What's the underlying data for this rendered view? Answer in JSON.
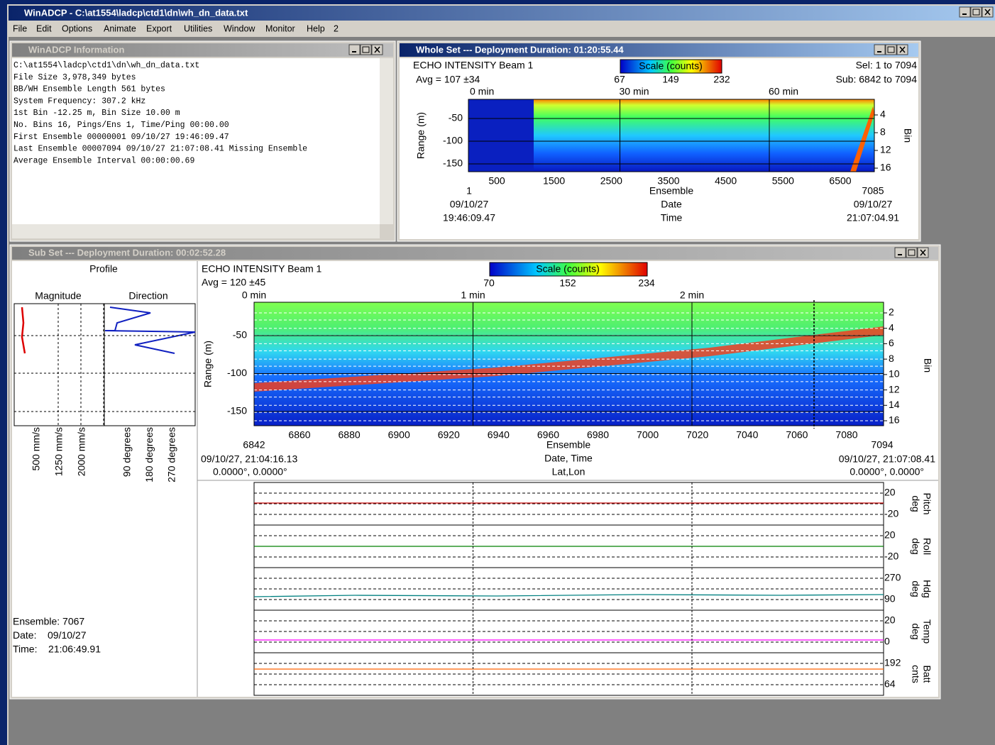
{
  "app": {
    "title": "WinADCP - C:\\at1554\\ladcp\\ctd1\\dn\\wh_dn_data.txt",
    "menu": [
      "File",
      "Edit",
      "Options",
      "Animate",
      "Export",
      "Utilities",
      "Window",
      "Monitor",
      "Help",
      "2"
    ]
  },
  "info_window": {
    "title": "WinADCP Information",
    "lines": [
      "C:\\at1554\\ladcp\\ctd1\\dn\\wh_dn_data.txt",
      "File Size 3,978,349 bytes",
      "BB/WH Ensemble Length 561 bytes",
      "System Frequency: 307.2 kHz",
      "1st Bin -12.25 m, Bin Size 10.00 m",
      "No. Bins 16, Pings/Ens 1, Time/Ping 00:00.00",
      "First Ensemble 00000001 09/10/27 19:46:09.47",
      "Last  Ensemble 00007094 09/10/27 21:07:08.41  Missing Ensemble",
      "Average Ensemble Interval 00:00:00.69"
    ]
  },
  "whole_set": {
    "title": "Whole Set --- Deployment Duration: 01:20:55.44",
    "chart_title": "ECHO INTENSITY Beam 1",
    "avg": "Avg = 107 ±34",
    "scale_label": "Scale (counts)",
    "scale_ticks": [
      "67",
      "149",
      "232"
    ],
    "sel": "Sel: 1 to 7094",
    "sub": "Sub: 6842 to 7094",
    "time_ticks": [
      "0 min",
      "30 min",
      "60 min"
    ],
    "range_label": "Range (m)",
    "range_ticks": [
      "-50",
      "-100",
      "-150"
    ],
    "bin_label": "Bin",
    "bin_ticks": [
      "4",
      "8",
      "12",
      "16"
    ],
    "ensemble_ticks": [
      "500",
      "1500",
      "2500",
      "3500",
      "4500",
      "5500",
      "6500"
    ],
    "x_label": "Ensemble",
    "date_label": "Date",
    "time_label": "Time",
    "start": [
      "1",
      "09/10/27",
      "19:46:09.47"
    ],
    "end": [
      "7085",
      "09/10/27",
      "21:07:04.91"
    ]
  },
  "sub_set": {
    "title": "Sub Set --- Deployment Duration: 00:02:52.28",
    "profile": {
      "title": "Profile",
      "magnitude": "Magnitude",
      "direction": "Direction",
      "magnitude_ticks": [
        "500 mm/s",
        "1250 mm/s",
        "2000 mm/s"
      ],
      "direction_ticks": [
        "90 degrees",
        "180 degrees",
        "270 degrees"
      ],
      "ensemble": "Ensemble: 7067",
      "date": "Date:    09/10/27",
      "time": "Time:    21:06:49.91"
    },
    "chart_title": "ECHO INTENSITY Beam 1",
    "avg": "Avg = 120 ±45",
    "scale_label": "Scale (counts)",
    "scale_ticks": [
      "70",
      "152",
      "234"
    ],
    "time_ticks": [
      "0 min",
      "1 min",
      "2 min"
    ],
    "range_label": "Range (m)",
    "range_ticks": [
      "-50",
      "-100",
      "-150"
    ],
    "bin_label": "Bin",
    "bin_ticks": [
      "2",
      "4",
      "6",
      "8",
      "10",
      "12",
      "14",
      "16"
    ],
    "ensemble_ticks": [
      "6860",
      "6880",
      "6900",
      "6920",
      "6940",
      "6960",
      "6980",
      "7000",
      "7020",
      "7040",
      "7060",
      "7080"
    ],
    "x_label": "Ensemble",
    "datetime_label": "Date, Time",
    "latlon_label": "Lat,Lon",
    "start": [
      "6842",
      "09/10/27, 21:04:16.13",
      "0.0000°, 0.0000°"
    ],
    "end": [
      "7094",
      "09/10/27, 21:07:08.41",
      "0.0000°, 0.0000°"
    ],
    "sensors": [
      {
        "name": [
          "Pitch",
          "deg"
        ],
        "max": "20",
        "min": "-20"
      },
      {
        "name": [
          "Roll",
          "deg"
        ],
        "max": "20",
        "min": "-20"
      },
      {
        "name": [
          "Hdg",
          "deg"
        ],
        "max": "270",
        "min": "90"
      },
      {
        "name": [
          "Temp",
          "deg"
        ],
        "max": "20",
        "min": "0"
      },
      {
        "name": [
          "Batt",
          "cnts"
        ],
        "max": "192",
        "min": "64"
      }
    ]
  }
}
